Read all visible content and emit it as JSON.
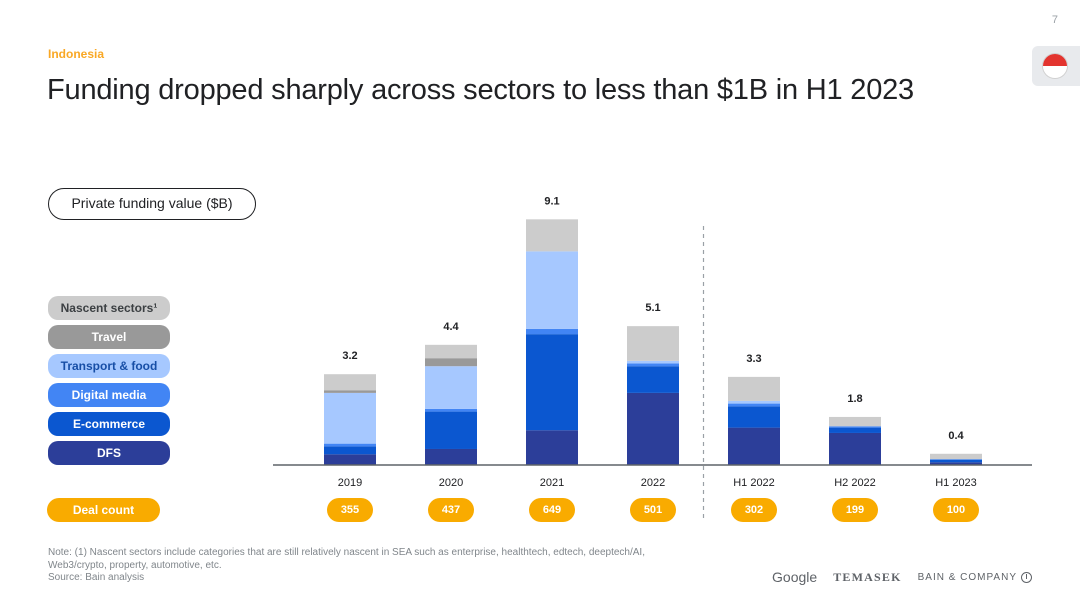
{
  "page_number": "7",
  "region": "Indonesia",
  "title": "Funding dropped sharply across sectors to less than $1B in H1 2023",
  "unit_label": "Private funding value ($B)",
  "deal_count_label": "Deal count",
  "legend": [
    {
      "name": "Nascent sectors¹",
      "color": "#cccccc",
      "text_color": "#3c4043"
    },
    {
      "name": "Travel",
      "color": "#999999",
      "text_color": "#ffffff"
    },
    {
      "name": "Transport & food",
      "color": "#a6c8ff",
      "text_color": "#174ea6"
    },
    {
      "name": "Digital media",
      "color": "#4285f4",
      "text_color": "#ffffff"
    },
    {
      "name": "E-commerce",
      "color": "#0b57d0",
      "text_color": "#ffffff"
    },
    {
      "name": "DFS",
      "color": "#2c3e99",
      "text_color": "#ffffff"
    }
  ],
  "chart_data": {
    "type": "bar",
    "stacked": true,
    "categories": [
      "2019",
      "2020",
      "2021",
      "2022",
      "H1 2022",
      "H2 2022",
      "H1 2023"
    ],
    "totals": [
      "3.2",
      "4.4",
      "9.1",
      "5.1",
      "3.3",
      "1.8",
      "0.4"
    ],
    "deal_counts": [
      "355",
      "437",
      "649",
      "501",
      "302",
      "199",
      "100"
    ],
    "series": [
      {
        "name": "DFS",
        "color": "#2c3e99",
        "values": [
          0.4,
          0.6,
          1.3,
          2.7,
          1.4,
          1.2,
          0.1
        ]
      },
      {
        "name": "E-commerce",
        "color": "#0b57d0",
        "values": [
          0.3,
          1.4,
          3.6,
          1.0,
          0.8,
          0.2,
          0.1
        ]
      },
      {
        "name": "Digital media",
        "color": "#4285f4",
        "values": [
          0.1,
          0.1,
          0.2,
          0.1,
          0.1,
          0.05,
          0.02
        ]
      },
      {
        "name": "Transport & food",
        "color": "#a6c8ff",
        "values": [
          1.9,
          1.6,
          2.9,
          0.1,
          0.1,
          0.0,
          0.0
        ]
      },
      {
        "name": "Travel",
        "color": "#999999",
        "values": [
          0.1,
          0.3,
          0.0,
          0.0,
          0.0,
          0.0,
          0.0
        ]
      },
      {
        "name": "Nascent sectors¹",
        "color": "#cccccc",
        "values": [
          0.6,
          0.5,
          1.2,
          1.3,
          0.9,
          0.35,
          0.2
        ]
      }
    ],
    "ylim": [
      0,
      9.1
    ],
    "separator_after_index": 3
  },
  "footnote": {
    "line1": "Note: (1) Nascent sectors include categories that are still relatively nascent in SEA such as enterprise, healthtech, edtech, deeptech/AI,",
    "line2": "Web3/crypto, property, automotive, etc.",
    "source": "Source: Bain analysis"
  },
  "logos": {
    "google": "Google",
    "temasek": "TEMASEK",
    "bain": "BAIN & COMPANY"
  }
}
